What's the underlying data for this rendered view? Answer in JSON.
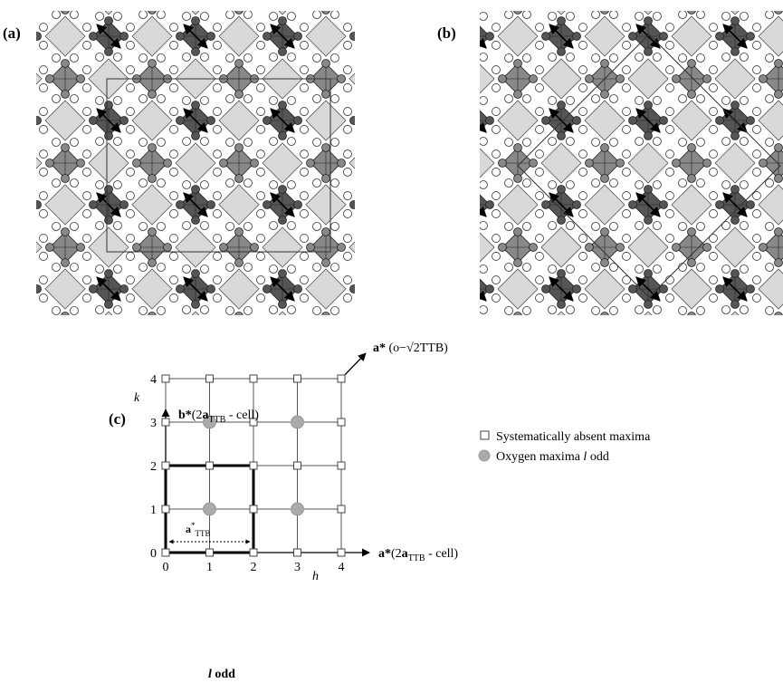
{
  "panels": [
    {
      "label": "(a)"
    },
    {
      "label": "(b)"
    },
    {
      "label": "(c)"
    }
  ],
  "lattice": {
    "h_ticks": [
      0,
      1,
      2,
      3,
      4
    ],
    "k_ticks": [
      0,
      1,
      2,
      3,
      4
    ],
    "h_label": "h",
    "k_label": "k",
    "x_axis_title": {
      "star": "a*",
      "open": "(2",
      "vec": "a",
      "sub": "TTB",
      "close": " - cell)"
    },
    "y_axis_title": {
      "star": "b*",
      "open": "(2",
      "vec": "a",
      "sub": "TTB",
      "close": " - cell)"
    },
    "diagonal_title": {
      "star": "a*",
      "rest": " (o−√2TTB)"
    },
    "unit_label": {
      "vec": "a",
      "sup": "*",
      "sub": "TTB"
    },
    "absent_maxima": [
      [
        0,
        0
      ],
      [
        1,
        0
      ],
      [
        2,
        0
      ],
      [
        3,
        0
      ],
      [
        4,
        0
      ],
      [
        0,
        1
      ],
      [
        2,
        1
      ],
      [
        4,
        1
      ],
      [
        0,
        2
      ],
      [
        1,
        2
      ],
      [
        2,
        2
      ],
      [
        3,
        2
      ],
      [
        4,
        2
      ],
      [
        0,
        3
      ],
      [
        2,
        3
      ],
      [
        4,
        3
      ],
      [
        0,
        4
      ],
      [
        1,
        4
      ],
      [
        2,
        4
      ],
      [
        3,
        4
      ],
      [
        4,
        4
      ]
    ],
    "oxygen_maxima": [
      [
        1,
        1
      ],
      [
        3,
        1
      ],
      [
        1,
        3
      ],
      [
        3,
        3
      ]
    ],
    "legend": [
      {
        "marker": "square",
        "text": "Systematically absent maxima"
      },
      {
        "marker": "circle",
        "text": "Oxygen maxima ",
        "italic": "l",
        "suffix": " odd"
      }
    ],
    "footer": {
      "italic": "l",
      "text": " odd"
    }
  }
}
